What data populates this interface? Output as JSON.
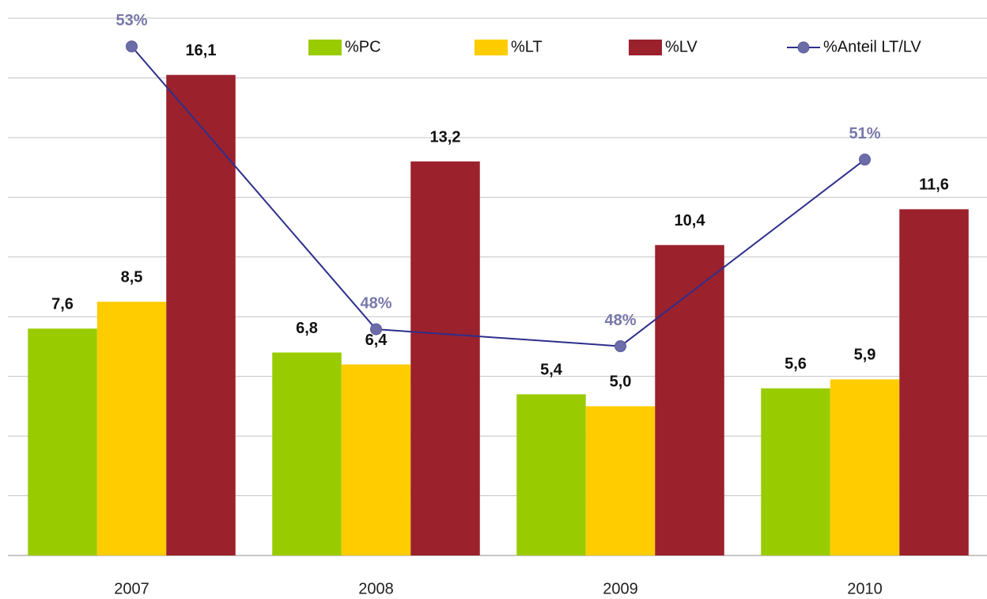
{
  "chart_data": {
    "type": "bar",
    "categories": [
      "2007",
      "2008",
      "2009",
      "2010"
    ],
    "series": [
      {
        "name": "%PC",
        "color": "#99cc00",
        "values": [
          7.6,
          6.8,
          5.4,
          5.6
        ],
        "value_labels": [
          "7,6",
          "6,8",
          "5,4",
          "5,6"
        ]
      },
      {
        "name": "%LT",
        "color": "#ffcc00",
        "values": [
          8.5,
          6.4,
          5.0,
          5.9
        ],
        "value_labels": [
          "8,5",
          "6,4",
          "5,0",
          "5,9"
        ]
      },
      {
        "name": "%LV",
        "color": "#9b212d",
        "values": [
          16.1,
          13.2,
          10.4,
          11.6
        ],
        "value_labels": [
          "16,1",
          "13,2",
          "10,4",
          "11,6"
        ]
      },
      {
        "name": "%Anteil LT/LV",
        "type": "line",
        "axis": "y2",
        "color": "#2e2e8c",
        "values": [
          53,
          48,
          47.7,
          51
        ],
        "value_labels": [
          "53%",
          "48%",
          "48%",
          "51%"
        ]
      }
    ],
    "ylim": [
      0,
      18
    ],
    "yticks": [
      0,
      2,
      4,
      6,
      8,
      10,
      12,
      14,
      16,
      18
    ],
    "y2lim": [
      44,
      53.5
    ],
    "grid": true,
    "legend": "top"
  }
}
